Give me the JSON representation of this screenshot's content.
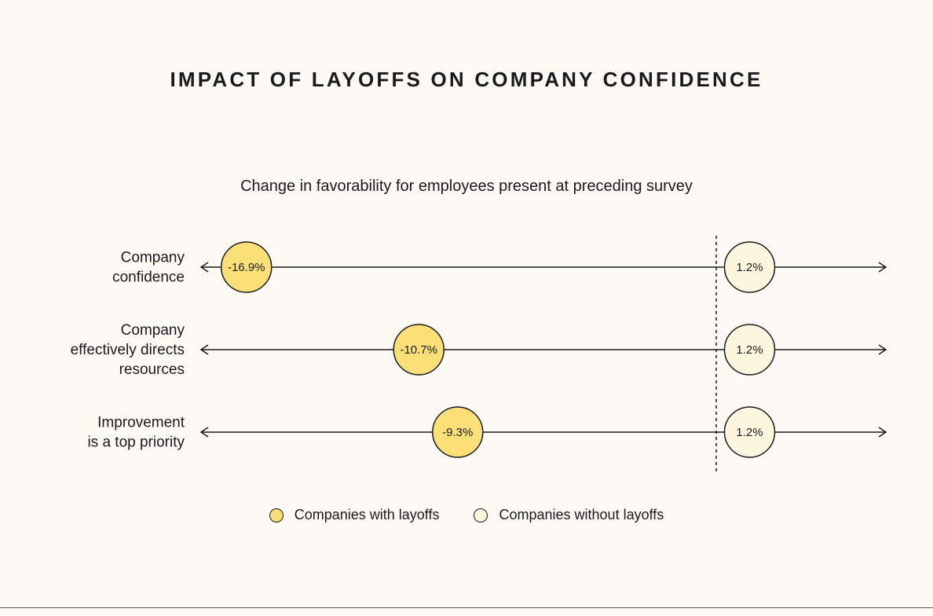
{
  "chart_data": {
    "type": "scatter",
    "title": "IMPACT OF LAYOFFS ON COMPANY CONFIDENCE",
    "subtitle": "Change in favorability for employees present at preceding survey",
    "categories": [
      [
        "Company",
        "confidence"
      ],
      [
        "Company",
        "effectively directs",
        "resources"
      ],
      [
        "Improvement",
        "is a top priority"
      ]
    ],
    "series": [
      {
        "name": "Companies with layoffs",
        "values": [
          -16.9,
          -10.7,
          -9.3
        ],
        "labels": [
          "-16.9%",
          "-10.7%",
          "-9.3%"
        ],
        "color": "#fbe077"
      },
      {
        "name": "Companies without layoffs",
        "values": [
          1.2,
          1.2,
          1.2
        ],
        "labels": [
          "1.2%",
          "1.2%",
          "1.2%"
        ],
        "color": "#fdf6df"
      }
    ],
    "reference_line": 0,
    "grid": false,
    "legend_position": "bottom"
  }
}
